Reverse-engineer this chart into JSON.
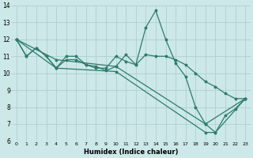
{
  "xlabel": "Humidex (Indice chaleur)",
  "xlim": [
    -0.5,
    23.5
  ],
  "ylim": [
    6,
    14
  ],
  "yticks": [
    6,
    7,
    8,
    9,
    10,
    11,
    12,
    13,
    14
  ],
  "xticks": [
    0,
    1,
    2,
    3,
    4,
    5,
    6,
    7,
    8,
    9,
    10,
    11,
    12,
    13,
    14,
    15,
    16,
    17,
    18,
    19,
    20,
    21,
    22,
    23
  ],
  "bg_color": "#cce8e8",
  "grid_color": "#b0d0d0",
  "line_color": "#2e7b6e",
  "line1_x": [
    0,
    1,
    2,
    3,
    4,
    5,
    6,
    7,
    8,
    9,
    10,
    11,
    12,
    13,
    14,
    15,
    16,
    17,
    18,
    19,
    20,
    21,
    22,
    23
  ],
  "line1_y": [
    12.0,
    11.0,
    11.5,
    11.0,
    10.3,
    10.8,
    10.8,
    10.5,
    10.3,
    10.3,
    11.0,
    10.7,
    10.5,
    12.7,
    13.7,
    12.0,
    10.6,
    9.8,
    8.0,
    7.0,
    6.5,
    7.5,
    7.9,
    8.5
  ],
  "line2_x": [
    0,
    1,
    2,
    3,
    4,
    5,
    6,
    7,
    8,
    9,
    10,
    11,
    12,
    13,
    14,
    15,
    16,
    17,
    18,
    19,
    20,
    21,
    22,
    23
  ],
  "line2_y": [
    12.0,
    11.0,
    11.5,
    11.0,
    10.3,
    11.0,
    11.0,
    10.5,
    10.4,
    10.15,
    10.4,
    11.1,
    10.5,
    11.1,
    11.0,
    11.0,
    10.8,
    10.5,
    10.0,
    9.5,
    9.2,
    8.8,
    8.5,
    8.5
  ],
  "line3_x": [
    0,
    4,
    10,
    19,
    23
  ],
  "line3_y": [
    12.0,
    10.8,
    10.4,
    7.0,
    8.5
  ],
  "line4_x": [
    0,
    4,
    10,
    19,
    20,
    23
  ],
  "line4_y": [
    12.0,
    10.3,
    10.1,
    6.5,
    6.5,
    8.5
  ]
}
